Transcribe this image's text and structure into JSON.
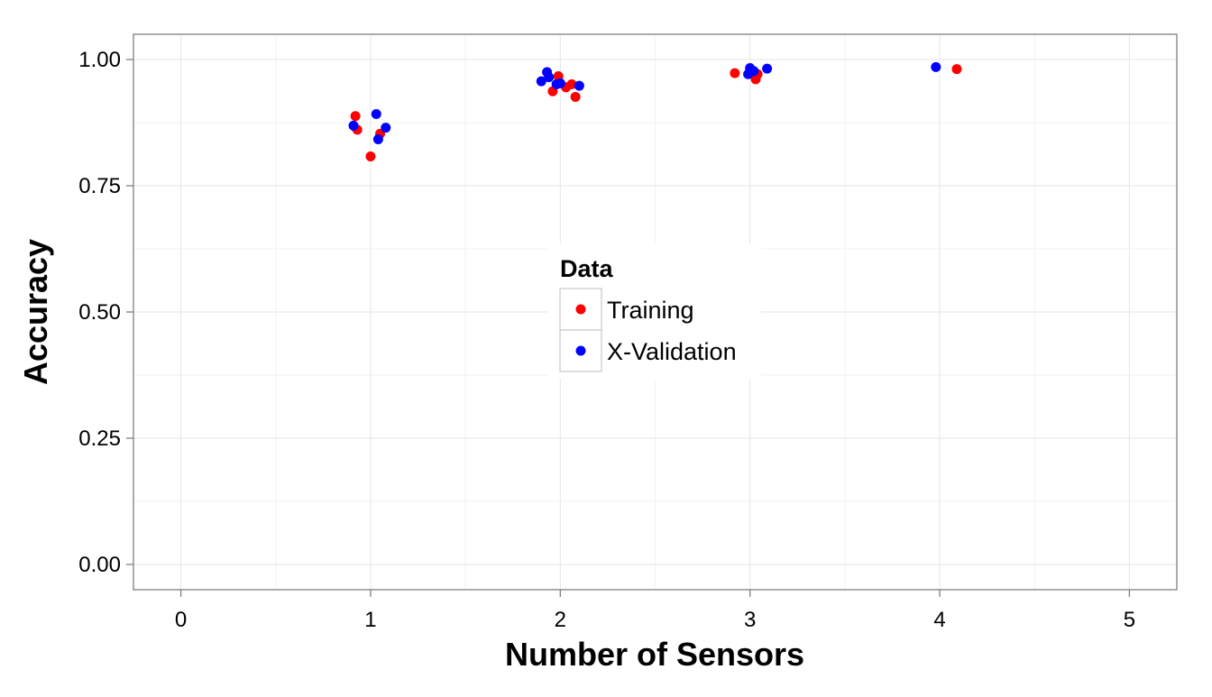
{
  "chart_data": {
    "type": "scatter",
    "title": "",
    "xlabel": "Number of Sensors",
    "ylabel": "Accuracy",
    "xlim": [
      -0.25,
      5.25
    ],
    "ylim": [
      -0.05,
      1.05
    ],
    "x_ticks": [
      0,
      1,
      2,
      3,
      4,
      5
    ],
    "x_tick_labels": [
      "0",
      "1",
      "2",
      "3",
      "4",
      "5"
    ],
    "y_ticks": [
      0.0,
      0.25,
      0.5,
      0.75,
      1.0
    ],
    "y_tick_labels": [
      "0.00",
      "0.25",
      "0.50",
      "0.75",
      "1.00"
    ],
    "grid": true,
    "legend": {
      "title": "Data",
      "placement": "center",
      "entries": [
        "Training",
        "X-Validation"
      ]
    },
    "series": [
      {
        "name": "Training",
        "color": "#ff0000",
        "points": [
          {
            "x": 0.92,
            "y": 0.888
          },
          {
            "x": 0.93,
            "y": 0.861
          },
          {
            "x": 1.0,
            "y": 0.808
          },
          {
            "x": 1.05,
            "y": 0.853
          },
          {
            "x": 1.99,
            "y": 0.967
          },
          {
            "x": 1.96,
            "y": 0.937
          },
          {
            "x": 2.03,
            "y": 0.945
          },
          {
            "x": 2.06,
            "y": 0.951
          },
          {
            "x": 2.08,
            "y": 0.926
          },
          {
            "x": 2.92,
            "y": 0.973
          },
          {
            "x": 3.03,
            "y": 0.961
          },
          {
            "x": 3.04,
            "y": 0.971
          },
          {
            "x": 4.09,
            "y": 0.981
          }
        ]
      },
      {
        "name": "X-Validation",
        "color": "#0000ff",
        "points": [
          {
            "x": 0.91,
            "y": 0.869
          },
          {
            "x": 1.03,
            "y": 0.892
          },
          {
            "x": 1.04,
            "y": 0.842
          },
          {
            "x": 1.08,
            "y": 0.865
          },
          {
            "x": 1.9,
            "y": 0.957
          },
          {
            "x": 1.93,
            "y": 0.975
          },
          {
            "x": 1.94,
            "y": 0.965
          },
          {
            "x": 1.98,
            "y": 0.951
          },
          {
            "x": 2.0,
            "y": 0.953
          },
          {
            "x": 2.1,
            "y": 0.948
          },
          {
            "x": 2.99,
            "y": 0.971
          },
          {
            "x": 3.0,
            "y": 0.983
          },
          {
            "x": 3.02,
            "y": 0.977
          },
          {
            "x": 3.09,
            "y": 0.982
          },
          {
            "x": 3.98,
            "y": 0.985
          }
        ]
      }
    ]
  }
}
